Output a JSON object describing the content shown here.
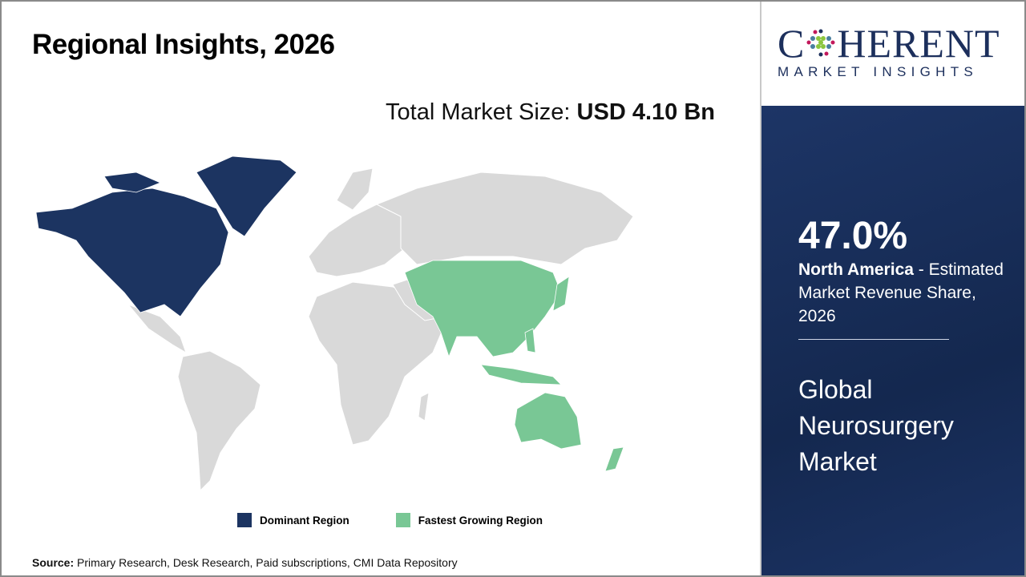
{
  "header": {
    "title": "Regional Insights, 2026"
  },
  "total": {
    "label": "Total Market Size: ",
    "value": "USD 4.10 Bn"
  },
  "legend": [
    {
      "label": "Dominant Region",
      "color": "#1c3461"
    },
    {
      "label": "Fastest Growing Region",
      "color": "#79c795"
    }
  ],
  "map": {
    "dominant_region": "North America",
    "fastest_growing_region": "Asia Pacific",
    "other_color": "#d9d9d9"
  },
  "source": {
    "label": "Source:",
    "text": " Primary Research, Desk Research, Paid subscriptions, CMI Data Repository"
  },
  "logo": {
    "name_pre": "C",
    "name_post": "HERENT",
    "tagline": "MARKET INSIGHTS"
  },
  "panel": {
    "percent": "47.0%",
    "region": "North America",
    "desc": " - Estimated Market Revenue Share, 2026",
    "market": "Global Neurosurgery Market"
  }
}
